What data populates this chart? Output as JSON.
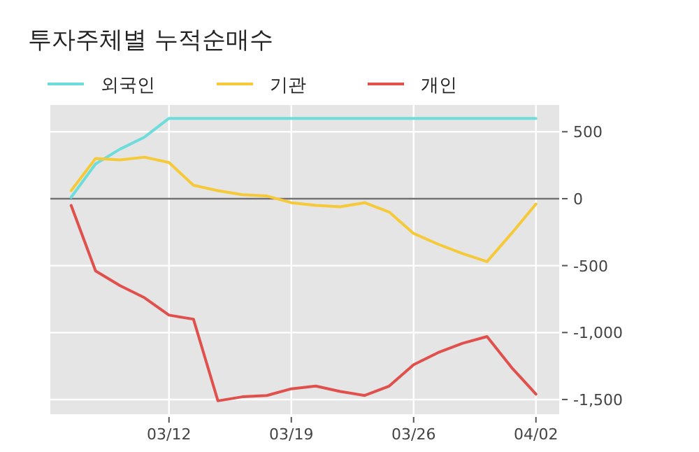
{
  "chart_data": {
    "type": "line",
    "title": "투자주체별 누적순매수",
    "categories": [
      null,
      null,
      null,
      null,
      "03/12",
      null,
      null,
      null,
      null,
      "03/19",
      null,
      null,
      null,
      null,
      "03/26",
      null,
      null,
      null,
      null,
      "04/02"
    ],
    "series": [
      {
        "name": "외국인",
        "color": "#6fdcdc",
        "values": [
          10,
          260,
          370,
          460,
          600,
          600,
          600,
          600,
          600,
          600,
          600,
          600,
          600,
          600,
          600,
          600,
          600,
          600,
          600,
          600
        ]
      },
      {
        "name": "기관",
        "color": "#f5c938",
        "values": [
          60,
          300,
          290,
          310,
          270,
          100,
          60,
          30,
          20,
          -30,
          -50,
          -60,
          -30,
          -100,
          -260,
          -340,
          -410,
          -470,
          -260,
          -40
        ]
      },
      {
        "name": "개인",
        "color": "#e0504c",
        "values": [
          -50,
          -540,
          -650,
          -740,
          -870,
          -900,
          -1510,
          -1480,
          -1470,
          -1420,
          -1400,
          -1440,
          -1470,
          -1400,
          -1240,
          -1150,
          -1080,
          -1030,
          -1260,
          -1460
        ]
      }
    ],
    "ylim": [
      -1610,
      700
    ],
    "yticks": [
      500,
      0,
      -500,
      {
        "value": -1000,
        "label": "-1,000"
      },
      {
        "value": -1500,
        "label": "-1,500"
      }
    ],
    "ref_lines": [
      {
        "axis": "y",
        "value": 0,
        "color": "#707070"
      }
    ],
    "grid": true,
    "legend": "top left",
    "marker": "none",
    "line_style": "solid"
  }
}
